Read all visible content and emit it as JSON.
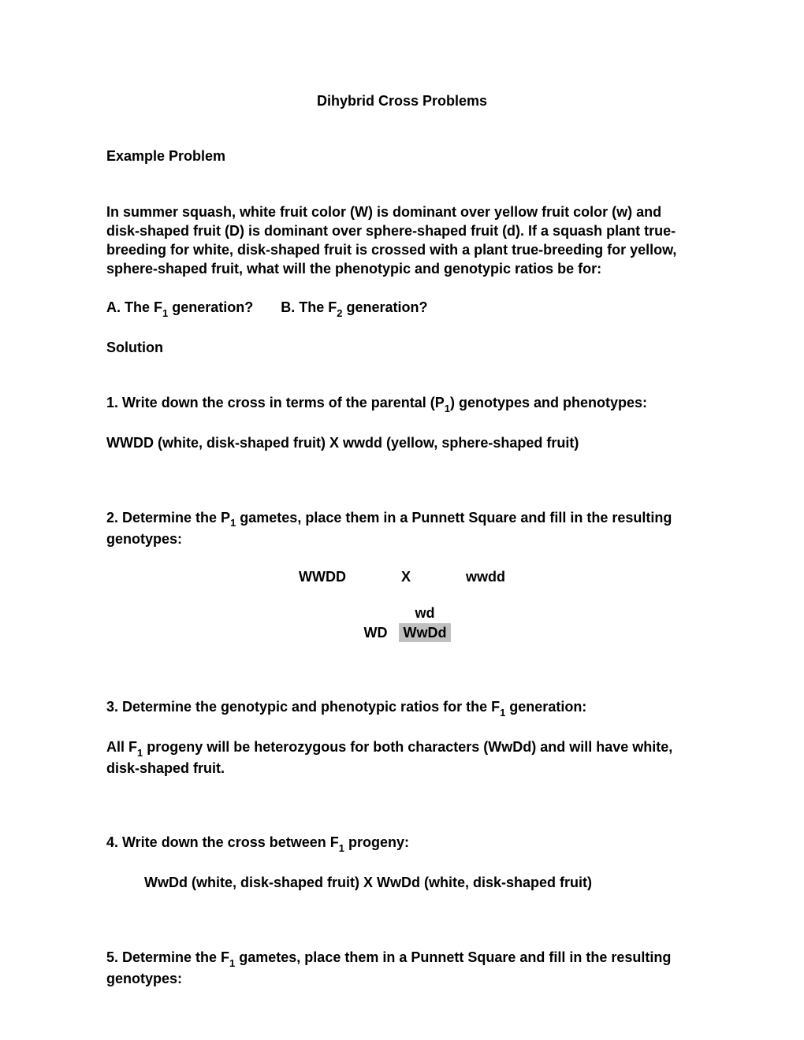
{
  "title": "Dihybrid Cross Problems",
  "exampleLabel": "Example Problem",
  "problem": {
    "p1": "In summer squash, white fruit color (W) is dominant over yellow fruit color (w) and disk-shaped fruit (D) is dominant over sphere-shaped fruit (d).  If a squash plant true-breeding for white, disk-shaped fruit is crossed with a plant true-breeding for yellow, sphere-shaped fruit, what will the phenotypic and genotypic ratios be for:",
    "qA_pre": "A.  The F",
    "qA_sub": "1",
    "qA_post": " generation?",
    "qB_pre": "B.  The F",
    "qB_sub": "2",
    "qB_post": " generation?"
  },
  "solutionLabel": "Solution",
  "step1": {
    "text_pre": "1.  Write down the cross in terms of the parental (P",
    "text_sub": "1",
    "text_post": ") genotypes and phenotypes:",
    "cross": "WWDD (white, disk-shaped fruit)    X    wwdd (yellow, sphere-shaped fruit)"
  },
  "step2": {
    "text_pre": "2.   Determine the P",
    "text_sub": "1",
    "text_post": " gametes, place them in a Punnett Square and fill in the resulting genotypes:",
    "cross_left": "WWDD",
    "cross_mid": "X",
    "cross_right": "wwdd",
    "punnett": {
      "col_header": "wd",
      "row_header": "WD",
      "cell": "WwDd",
      "shaded_bg": "#c0c0c0"
    }
  },
  "step3": {
    "text_pre": "3.  Determine the genotypic and phenotypic ratios for the F",
    "text_sub": "1",
    "text_post": " generation:",
    "result_pre": "All F",
    "result_sub": "1",
    "result_post": " progeny will be heterozygous for both characters (WwDd) and will have white, disk-shaped fruit."
  },
  "step4": {
    "text_pre": "4.  Write down the cross between F",
    "text_sub": "1",
    "text_post": " progeny:",
    "cross": "WwDd (white, disk-shaped fruit)     X      WwDd (white, disk-shaped fruit)"
  },
  "step5": {
    "text_pre": "5.   Determine the F",
    "text_sub": "1",
    "text_post": " gametes, place them in a Punnett Square and fill in the resulting genotypes:"
  },
  "colors": {
    "background": "#ffffff",
    "text": "#000000",
    "shaded_cell": "#c0c0c0"
  },
  "typography": {
    "font_family": "Comic Sans MS",
    "font_size_pt": 12,
    "font_weight": "bold"
  }
}
